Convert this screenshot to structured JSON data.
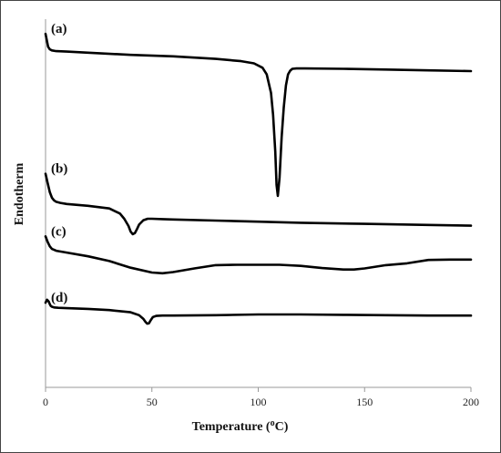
{
  "chart_data": {
    "type": "line",
    "xlabel": "Temperature (",
    "xlabel_sup": "o",
    "xlabel_unit": "C)",
    "ylabel": "Endotherm",
    "xlim": [
      0,
      200
    ],
    "ylim": [
      0,
      100
    ],
    "xticks": [
      "0",
      "50",
      "100",
      "150",
      "200"
    ],
    "grid": false,
    "legend": "none",
    "series": [
      {
        "label": "(a)",
        "x": [
          0,
          0.5,
          1.2,
          2,
          3,
          5,
          10,
          20,
          40,
          60,
          80,
          92,
          98,
          102,
          104,
          106,
          107,
          108,
          108.6,
          109.2,
          110,
          111,
          112,
          113,
          114,
          115,
          116,
          118,
          122,
          140,
          160,
          180,
          200
        ],
        "y": [
          96,
          94.5,
          92.5,
          91.8,
          91.5,
          91.3,
          91.2,
          90.9,
          90.3,
          89.9,
          89.2,
          88.6,
          88.0,
          86.8,
          85.0,
          80.0,
          74.0,
          64.0,
          55.0,
          52.0,
          57.0,
          68.0,
          76.0,
          82.0,
          85.0,
          86.0,
          86.5,
          86.6,
          86.6,
          86.5,
          86.3,
          86.1,
          85.9
        ]
      },
      {
        "label": "(b)",
        "x": [
          0,
          1,
          2,
          3,
          4,
          5,
          7,
          10,
          20,
          30,
          35,
          37,
          39,
          40,
          41,
          42,
          43,
          44,
          46,
          48,
          50,
          55,
          60,
          80,
          100,
          120,
          150,
          180,
          200
        ],
        "y": [
          58,
          55.5,
          53.0,
          51.5,
          50.8,
          50.4,
          50.1,
          49.8,
          49.3,
          48.6,
          47.2,
          45.8,
          43.8,
          42.3,
          41.6,
          41.9,
          43.0,
          44.2,
          45.4,
          45.8,
          45.8,
          45.7,
          45.6,
          45.3,
          45.0,
          44.7,
          44.4,
          44.1,
          43.9
        ]
      },
      {
        "label": "(c)",
        "x": [
          0,
          1,
          2,
          3,
          5,
          10,
          20,
          30,
          40,
          50,
          55,
          60,
          70,
          80,
          90,
          100,
          110,
          120,
          130,
          140,
          145,
          150,
          160,
          170,
          180,
          190,
          200
        ],
        "y": [
          41,
          39.5,
          38.3,
          37.6,
          37.1,
          36.6,
          35.6,
          34.3,
          32.5,
          31.2,
          31.0,
          31.3,
          32.3,
          33.2,
          33.3,
          33.3,
          33.3,
          33.0,
          32.4,
          32.0,
          32.0,
          32.3,
          33.2,
          33.7,
          34.6,
          34.7,
          34.7
        ]
      },
      {
        "label": "(d)",
        "x": [
          0,
          0.7,
          1.5,
          2,
          2.5,
          3,
          4,
          6,
          10,
          20,
          30,
          40,
          44,
          46,
          47,
          47.8,
          48.6,
          49.5,
          50.5,
          52,
          55,
          60,
          80,
          100,
          120,
          140,
          160,
          180,
          200
        ],
        "y": [
          23,
          23.8,
          23.3,
          22.6,
          22.1,
          21.9,
          21.7,
          21.6,
          21.5,
          21.3,
          21.0,
          20.4,
          19.6,
          18.6,
          17.8,
          17.3,
          17.4,
          18.3,
          19.1,
          19.4,
          19.5,
          19.5,
          19.6,
          19.8,
          19.8,
          19.7,
          19.6,
          19.5,
          19.5
        ]
      }
    ]
  }
}
